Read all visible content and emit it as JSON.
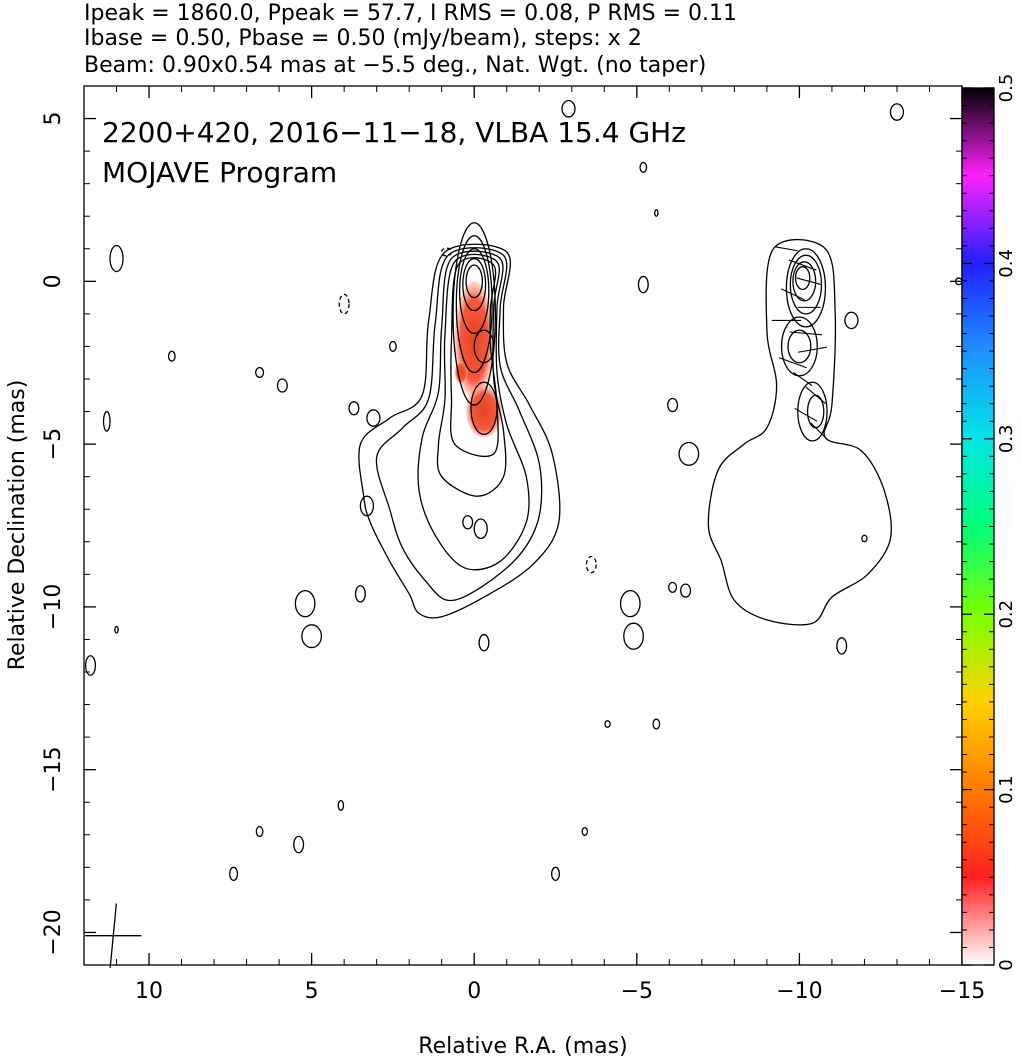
{
  "header": {
    "line1": "Ipeak = 1860.0, Ppeak = 57.7, I RMS = 0.08, P RMS = 0.11",
    "line2": "Ibase = 0.50, Pbase = 0.50 (mJy/beam), steps: x 2",
    "line3": "Beam: 0.90x0.54 mas at −5.5 deg., Nat. Wgt. (no taper)"
  },
  "annotation": {
    "line1": "2200+420, 2016−11−18, VLBA 15.4 GHz",
    "line2": "MOJAVE Program"
  },
  "colors": {
    "contour": "#000000",
    "polarization_peak": "#e8431f",
    "polarization_low": "#ffb0a0",
    "frame": "#000000"
  },
  "chart_data": {
    "type": "contour",
    "title": "2200+420, 2016−11−18, VLBA 15.4 GHz",
    "subtitle": "MOJAVE Program",
    "xlabel": "Relative R.A. (mas)",
    "ylabel": "Relative Declination (mas)",
    "xlim": [
      12,
      -15
    ],
    "ylim": [
      -21,
      6
    ],
    "x_ticks": [
      10,
      5,
      0,
      -5,
      -10,
      -15
    ],
    "x_tick_labels": [
      "10",
      "5",
      "0",
      "−5",
      "−10",
      "−15"
    ],
    "y_ticks": [
      5,
      0,
      -5,
      -10,
      -15,
      -20
    ],
    "y_tick_labels": [
      "5",
      "0",
      "−5",
      "−10",
      "−15",
      "−20"
    ],
    "grid": false,
    "stats": {
      "Ipeak_mJy_per_beam": 1860.0,
      "Ppeak_mJy_per_beam": 57.7,
      "I_RMS": 0.08,
      "P_RMS": 0.11,
      "Ibase": 0.5,
      "Pbase": 0.5,
      "contour_step_factor": 2
    },
    "beam": {
      "major_mas": 0.9,
      "minor_mas": 0.54,
      "pa_deg": -5.5,
      "weighting": "Nat. Wgt. (no taper)"
    },
    "colorbar": {
      "min": 0,
      "max": 0.5,
      "ticks": [
        0,
        0.1,
        0.2,
        0.3,
        0.4,
        0.5
      ],
      "tick_labels": [
        "0",
        "0.1",
        "0.2",
        "0.3",
        "0.4",
        "0.5"
      ],
      "stops": [
        {
          "v": 0.0,
          "color": "#ffffff"
        },
        {
          "v": 0.05,
          "color": "#ff2020"
        },
        {
          "v": 0.1,
          "color": "#ff7a00"
        },
        {
          "v": 0.15,
          "color": "#ffd200"
        },
        {
          "v": 0.2,
          "color": "#7aff00"
        },
        {
          "v": 0.25,
          "color": "#00ff7a"
        },
        {
          "v": 0.3,
          "color": "#00e6e6"
        },
        {
          "v": 0.35,
          "color": "#1e90ff"
        },
        {
          "v": 0.4,
          "color": "#2020ff"
        },
        {
          "v": 0.45,
          "color": "#ff20ff"
        },
        {
          "v": 0.5,
          "color": "#000000"
        }
      ]
    },
    "total_intensity_panel": {
      "core_center": [
        0,
        0
      ],
      "contours": [
        {
          "shape": "blob",
          "points": [
            [
              -1.0,
              0.9
            ],
            [
              0.9,
              0.9
            ],
            [
              1.4,
              -1.2
            ],
            [
              1.6,
              -3.5
            ],
            [
              2.6,
              -4.2
            ],
            [
              3.5,
              -5.0
            ],
            [
              3.4,
              -6.6
            ],
            [
              3.2,
              -7.4
            ],
            [
              2.6,
              -8.6
            ],
            [
              2.0,
              -9.6
            ],
            [
              1.7,
              -10.2
            ],
            [
              1.0,
              -10.3
            ],
            [
              -0.3,
              -9.7
            ],
            [
              -1.8,
              -8.7
            ],
            [
              -2.6,
              -7.4
            ],
            [
              -2.4,
              -5.3
            ],
            [
              -1.7,
              -3.8
            ],
            [
              -1.0,
              -2.5
            ],
            [
              -0.9,
              -0.8
            ]
          ]
        },
        {
          "shape": "blob",
          "points": [
            [
              -0.9,
              0.8
            ],
            [
              0.8,
              0.8
            ],
            [
              1.2,
              -1.3
            ],
            [
              1.4,
              -3.6
            ],
            [
              2.2,
              -4.5
            ],
            [
              3.0,
              -5.4
            ],
            [
              2.6,
              -7.0
            ],
            [
              2.2,
              -8.2
            ],
            [
              1.5,
              -9.2
            ],
            [
              0.8,
              -9.8
            ],
            [
              -0.2,
              -9.4
            ],
            [
              -1.4,
              -8.4
            ],
            [
              -2.0,
              -7.2
            ],
            [
              -2.0,
              -5.6
            ],
            [
              -1.4,
              -4.0
            ],
            [
              -0.8,
              -2.6
            ],
            [
              -0.8,
              -0.8
            ]
          ]
        },
        {
          "shape": "blob",
          "points": [
            [
              -0.8,
              0.7
            ],
            [
              0.7,
              0.7
            ],
            [
              1.0,
              -1.4
            ],
            [
              1.1,
              -3.4
            ],
            [
              1.6,
              -4.8
            ],
            [
              1.7,
              -6.4
            ],
            [
              1.2,
              -7.8
            ],
            [
              0.3,
              -8.8
            ],
            [
              -0.8,
              -8.6
            ],
            [
              -1.6,
              -7.4
            ],
            [
              -1.6,
              -6.0
            ],
            [
              -1.0,
              -4.4
            ],
            [
              -0.7,
              -2.8
            ],
            [
              -0.7,
              -0.8
            ]
          ]
        },
        {
          "shape": "blob",
          "points": [
            [
              -0.7,
              0.6
            ],
            [
              0.6,
              0.6
            ],
            [
              0.9,
              -1.6
            ],
            [
              0.9,
              -3.6
            ],
            [
              1.1,
              -5.0
            ],
            [
              1.0,
              -6.0
            ],
            [
              -0.1,
              -6.6
            ],
            [
              -0.9,
              -6.0
            ],
            [
              -0.9,
              -4.6
            ],
            [
              -0.6,
              -3.0
            ],
            [
              -0.6,
              -0.8
            ]
          ]
        },
        {
          "shape": "blob",
          "points": [
            [
              -0.6,
              0.5
            ],
            [
              0.5,
              0.5
            ],
            [
              0.7,
              -1.8
            ],
            [
              0.7,
              -3.6
            ],
            [
              0.6,
              -5.0
            ],
            [
              -0.6,
              -5.3
            ],
            [
              -0.7,
              -3.8
            ],
            [
              -0.5,
              -2.0
            ],
            [
              -0.5,
              -0.8
            ]
          ]
        },
        {
          "shape": "ellipse",
          "cx": 0.0,
          "cy": -1.0,
          "rx": 0.65,
          "ry": 2.8
        },
        {
          "shape": "ellipse",
          "cx": 0.0,
          "cy": -0.7,
          "rx": 0.55,
          "ry": 2.1
        },
        {
          "shape": "ellipse",
          "cx": 0.0,
          "cy": -0.3,
          "rx": 0.45,
          "ry": 1.3
        },
        {
          "shape": "ellipse",
          "cx": 0.0,
          "cy": -0.1,
          "rx": 0.35,
          "ry": 0.8
        },
        {
          "shape": "ellipse",
          "cx": 0.0,
          "cy": 0.0,
          "rx": 0.25,
          "ry": 0.5
        },
        {
          "shape": "ellipse",
          "cx": -0.3,
          "cy": -3.9,
          "rx": 0.4,
          "ry": 0.8
        },
        {
          "shape": "ellipse",
          "cx": -0.3,
          "cy": -2.0,
          "rx": 0.3,
          "ry": 0.5
        },
        {
          "shape": "ellipse",
          "cx": -0.2,
          "cy": -7.6,
          "rx": 0.2,
          "ry": 0.3
        },
        {
          "shape": "ellipse",
          "cx": 0.2,
          "cy": -7.4,
          "rx": 0.15,
          "ry": 0.2
        }
      ],
      "polarization_fill": [
        {
          "cx": 0.0,
          "cy": -1.8,
          "rx": 0.6,
          "ry": 1.8,
          "level": 0.06
        },
        {
          "cx": -0.3,
          "cy": -4.0,
          "rx": 0.55,
          "ry": 0.8,
          "level": 0.08
        },
        {
          "cx": 0.4,
          "cy": -2.8,
          "rx": 0.2,
          "ry": 0.35,
          "level": 0.1
        }
      ]
    },
    "polarization_panel": {
      "offset_ra": -10,
      "contours": [
        {
          "shape": "blob",
          "points": [
            [
              -9.2,
              1.0
            ],
            [
              -10.8,
              1.0
            ],
            [
              -11.1,
              -1.0
            ],
            [
              -11.0,
              -3.8
            ],
            [
              -10.8,
              -4.8
            ],
            [
              -11.9,
              -5.2
            ],
            [
              -12.6,
              -6.4
            ],
            [
              -12.8,
              -7.9
            ],
            [
              -12.1,
              -9.0
            ],
            [
              -11.0,
              -9.7
            ],
            [
              -10.4,
              -10.5
            ],
            [
              -9.0,
              -10.4
            ],
            [
              -8.0,
              -9.8
            ],
            [
              -7.6,
              -8.6
            ],
            [
              -7.2,
              -7.5
            ],
            [
              -7.5,
              -5.8
            ],
            [
              -8.3,
              -5.0
            ],
            [
              -9.0,
              -4.5
            ],
            [
              -9.3,
              -3.2
            ],
            [
              -9.0,
              -1.5
            ]
          ]
        },
        {
          "shape": "ellipse",
          "cx": -10.2,
          "cy": -0.2,
          "rx": 0.6,
          "ry": 1.2
        },
        {
          "shape": "ellipse",
          "cx": -10.2,
          "cy": -0.1,
          "rx": 0.48,
          "ry": 0.9
        },
        {
          "shape": "ellipse",
          "cx": -10.15,
          "cy": 0.0,
          "rx": 0.35,
          "ry": 0.6
        },
        {
          "shape": "ellipse",
          "cx": -10.1,
          "cy": 0.1,
          "rx": 0.22,
          "ry": 0.35
        },
        {
          "shape": "ellipse",
          "cx": -10.0,
          "cy": -2.0,
          "rx": 0.55,
          "ry": 0.9
        },
        {
          "shape": "ellipse",
          "cx": -10.0,
          "cy": -2.0,
          "rx": 0.35,
          "ry": 0.5
        },
        {
          "shape": "ellipse",
          "cx": -10.4,
          "cy": -4.0,
          "rx": 0.45,
          "ry": 0.9
        },
        {
          "shape": "ellipse",
          "cx": -10.5,
          "cy": -4.0,
          "rx": 0.25,
          "ry": 0.5
        }
      ],
      "evpa_vectors": [
        {
          "x": -9.6,
          "y": 1.0,
          "len": 0.7,
          "ang": 10
        },
        {
          "x": -10.1,
          "y": 0.5,
          "len": 0.9,
          "ang": 20
        },
        {
          "x": -10.3,
          "y": 0.0,
          "len": 0.8,
          "ang": 15
        },
        {
          "x": -9.8,
          "y": -0.4,
          "len": 0.8,
          "ang": 25
        },
        {
          "x": -10.3,
          "y": -0.8,
          "len": 0.7,
          "ang": 0
        },
        {
          "x": -9.6,
          "y": -1.2,
          "len": 0.9,
          "ang": 0
        },
        {
          "x": -10.2,
          "y": -1.6,
          "len": 1.0,
          "ang": 5
        },
        {
          "x": -10.4,
          "y": -2.1,
          "len": 0.9,
          "ang": -10
        },
        {
          "x": -9.8,
          "y": -2.5,
          "len": 0.9,
          "ang": 20
        },
        {
          "x": -10.1,
          "y": -3.0,
          "len": 0.7,
          "ang": 35
        },
        {
          "x": -10.5,
          "y": -3.5,
          "len": 0.8,
          "ang": 40
        },
        {
          "x": -10.2,
          "y": -4.1,
          "len": 0.8,
          "ang": 30
        },
        {
          "x": -10.6,
          "y": -4.6,
          "len": 0.7,
          "ang": 45
        }
      ]
    },
    "isolated_contours": [
      {
        "x": 11.0,
        "y": 0.7,
        "rx": 0.2,
        "ry": 0.4
      },
      {
        "x": 4.0,
        "y": -0.7,
        "rx": 0.15,
        "ry": 0.3,
        "dashed": true
      },
      {
        "x": 9.3,
        "y": -2.3,
        "rx": 0.1,
        "ry": 0.15
      },
      {
        "x": 6.6,
        "y": -2.8,
        "rx": 0.12,
        "ry": 0.15
      },
      {
        "x": 5.9,
        "y": -3.2,
        "rx": 0.15,
        "ry": 0.2
      },
      {
        "x": 3.7,
        "y": -3.9,
        "rx": 0.15,
        "ry": 0.2
      },
      {
        "x": 3.1,
        "y": -4.2,
        "rx": 0.2,
        "ry": 0.25
      },
      {
        "x": 2.5,
        "y": -2.0,
        "rx": 0.1,
        "ry": 0.15
      },
      {
        "x": 3.3,
        "y": -6.9,
        "rx": 0.2,
        "ry": 0.3
      },
      {
        "x": 3.5,
        "y": -9.6,
        "rx": 0.15,
        "ry": 0.25
      },
      {
        "x": 5.2,
        "y": -9.9,
        "rx": 0.3,
        "ry": 0.4
      },
      {
        "x": 5.0,
        "y": -10.9,
        "rx": 0.3,
        "ry": 0.35
      },
      {
        "x": 11.3,
        "y": -4.3,
        "rx": 0.1,
        "ry": 0.3
      },
      {
        "x": 11.8,
        "y": -11.8,
        "rx": 0.15,
        "ry": 0.3
      },
      {
        "x": 11.0,
        "y": -10.7,
        "rx": 0.05,
        "ry": 0.1
      },
      {
        "x": -0.3,
        "y": -11.1,
        "rx": 0.15,
        "ry": 0.25
      },
      {
        "x": -3.6,
        "y": -8.7,
        "rx": 0.15,
        "ry": 0.25,
        "dashed": true
      },
      {
        "x": -4.8,
        "y": -9.9,
        "rx": 0.3,
        "ry": 0.4
      },
      {
        "x": -4.9,
        "y": -10.9,
        "rx": 0.3,
        "ry": 0.4
      },
      {
        "x": -6.1,
        "y": -9.4,
        "rx": 0.12,
        "ry": 0.15
      },
      {
        "x": -6.5,
        "y": -9.5,
        "rx": 0.15,
        "ry": 0.2
      },
      {
        "x": -5.2,
        "y": -0.1,
        "rx": 0.15,
        "ry": 0.25
      },
      {
        "x": -5.2,
        "y": 3.5,
        "rx": 0.1,
        "ry": 0.15
      },
      {
        "x": -5.6,
        "y": 2.1,
        "rx": 0.05,
        "ry": 0.1
      },
      {
        "x": -6.1,
        "y": -3.8,
        "rx": 0.15,
        "ry": 0.2
      },
      {
        "x": -6.6,
        "y": -5.3,
        "rx": 0.3,
        "ry": 0.35
      },
      {
        "x": -2.9,
        "y": 5.3,
        "rx": 0.2,
        "ry": 0.25
      },
      {
        "x": -13.0,
        "y": 5.2,
        "rx": 0.2,
        "ry": 0.25
      },
      {
        "x": -11.6,
        "y": -1.2,
        "rx": 0.2,
        "ry": 0.25
      },
      {
        "x": -11.3,
        "y": -11.2,
        "rx": 0.15,
        "ry": 0.25
      },
      {
        "x": -12.0,
        "y": -7.9,
        "rx": 0.08,
        "ry": 0.1
      },
      {
        "x": -14.9,
        "y": 0.0,
        "rx": 0.1,
        "ry": 0.1
      },
      {
        "x": -4.1,
        "y": -13.6,
        "rx": 0.08,
        "ry": 0.1
      },
      {
        "x": -5.6,
        "y": -13.6,
        "rx": 0.1,
        "ry": 0.15
      },
      {
        "x": 4.1,
        "y": -16.1,
        "rx": 0.08,
        "ry": 0.15
      },
      {
        "x": 6.6,
        "y": -16.9,
        "rx": 0.1,
        "ry": 0.15
      },
      {
        "x": 5.4,
        "y": -17.3,
        "rx": 0.15,
        "ry": 0.25
      },
      {
        "x": 7.4,
        "y": -18.2,
        "rx": 0.12,
        "ry": 0.2
      },
      {
        "x": -2.5,
        "y": -18.2,
        "rx": 0.12,
        "ry": 0.2
      },
      {
        "x": -3.4,
        "y": -16.9,
        "rx": 0.08,
        "ry": 0.12
      },
      {
        "x": 0.85,
        "y": 0.9,
        "rx": 0.15,
        "ry": 0.12,
        "dashed": true
      }
    ],
    "beam_marker": {
      "x": 11.1,
      "y": -20.1
    }
  }
}
